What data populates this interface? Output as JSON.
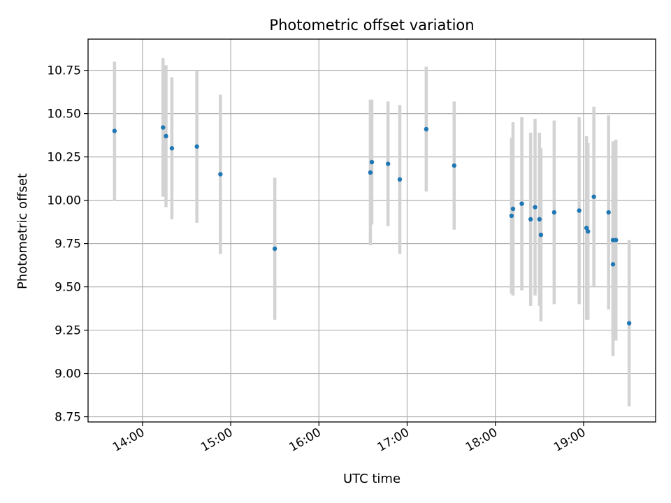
{
  "chart_data": {
    "type": "scatter",
    "title": "Photometric offset variation",
    "xlabel": "UTC time",
    "ylabel": "Photometric offset",
    "x_format": "time",
    "xlim": [
      "13:23",
      "19:49"
    ],
    "ylim": [
      8.72,
      10.93
    ],
    "x_ticks": [
      "14:00",
      "15:00",
      "16:00",
      "17:00",
      "18:00",
      "19:00"
    ],
    "y_ticks": [
      "8.75",
      "9.00",
      "9.25",
      "9.50",
      "9.75",
      "10.00",
      "10.25",
      "10.50",
      "10.75"
    ],
    "grid": true,
    "legend": "none",
    "colors": {
      "points": "#1f77b4",
      "errorbars": "#d3d3d3"
    },
    "points": [
      {
        "x": "13:41",
        "y": 10.4,
        "err": 0.4
      },
      {
        "x": "14:14",
        "y": 10.42,
        "err": 0.4
      },
      {
        "x": "14:16",
        "y": 10.37,
        "err": 0.41
      },
      {
        "x": "14:20",
        "y": 10.3,
        "err": 0.41
      },
      {
        "x": "14:37",
        "y": 10.31,
        "err": 0.44
      },
      {
        "x": "14:53",
        "y": 10.15,
        "err": 0.46
      },
      {
        "x": "15:30",
        "y": 9.72,
        "err": 0.41
      },
      {
        "x": "16:35",
        "y": 10.16,
        "err": 0.42
      },
      {
        "x": "16:36",
        "y": 10.22,
        "err": 0.36
      },
      {
        "x": "16:47",
        "y": 10.21,
        "err": 0.36
      },
      {
        "x": "16:55",
        "y": 10.12,
        "err": 0.43
      },
      {
        "x": "17:13",
        "y": 10.41,
        "err": 0.36
      },
      {
        "x": "17:32",
        "y": 10.2,
        "err": 0.37
      },
      {
        "x": "18:11",
        "y": 9.91,
        "err": 0.45
      },
      {
        "x": "18:12",
        "y": 9.95,
        "err": 0.5
      },
      {
        "x": "18:18",
        "y": 9.98,
        "err": 0.5
      },
      {
        "x": "18:24",
        "y": 9.89,
        "err": 0.5
      },
      {
        "x": "18:27",
        "y": 9.96,
        "err": 0.51
      },
      {
        "x": "18:30",
        "y": 9.89,
        "err": 0.5
      },
      {
        "x": "18:31",
        "y": 9.8,
        "err": 0.5
      },
      {
        "x": "18:40",
        "y": 9.93,
        "err": 0.53
      },
      {
        "x": "18:57",
        "y": 9.94,
        "err": 0.54
      },
      {
        "x": "19:02",
        "y": 9.84,
        "err": 0.53
      },
      {
        "x": "19:03",
        "y": 9.82,
        "err": 0.51
      },
      {
        "x": "19:07",
        "y": 10.02,
        "err": 0.52
      },
      {
        "x": "19:17",
        "y": 9.93,
        "err": 0.56
      },
      {
        "x": "19:20",
        "y": 9.63,
        "err": 0.53
      },
      {
        "x": "19:20",
        "y": 9.77,
        "err": 0.57
      },
      {
        "x": "19:22",
        "y": 9.77,
        "err": 0.58
      },
      {
        "x": "19:31",
        "y": 9.29,
        "err": 0.48
      }
    ]
  }
}
